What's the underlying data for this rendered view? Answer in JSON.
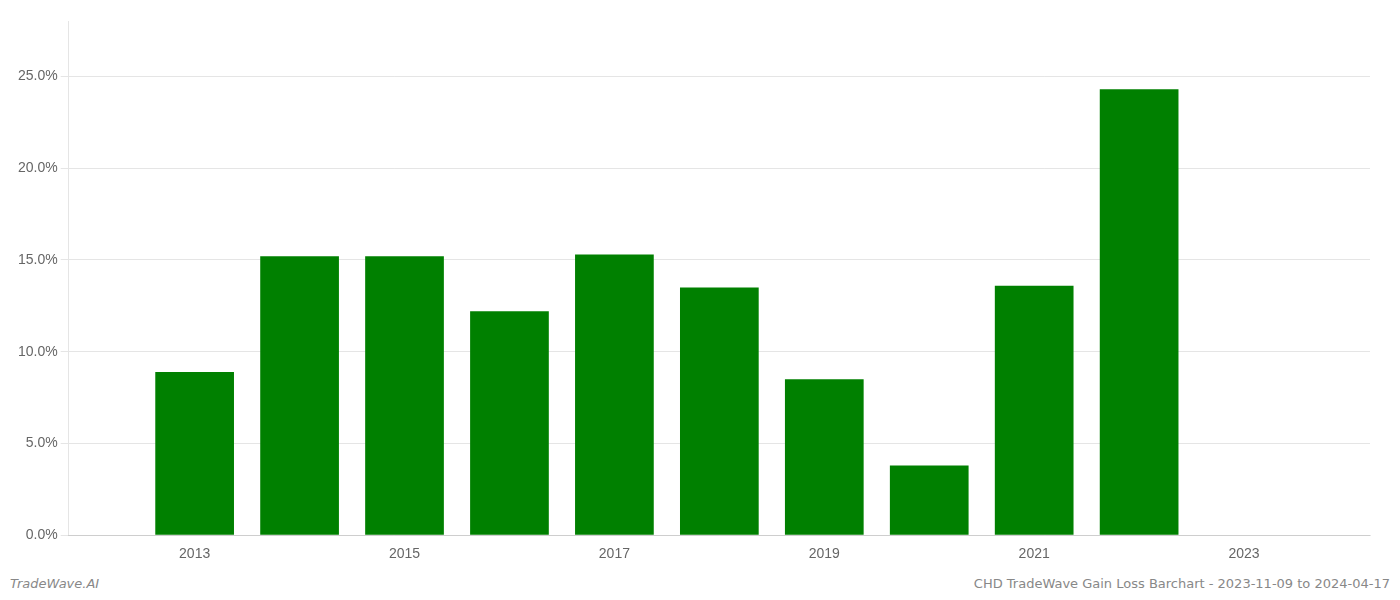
{
  "chart_data": {
    "type": "bar",
    "x": [
      2013,
      2014,
      2015,
      2016,
      2017,
      2018,
      2019,
      2020,
      2021,
      2022
    ],
    "values": [
      0.089,
      0.152,
      0.152,
      0.122,
      0.153,
      0.135,
      0.085,
      0.038,
      0.136,
      0.243
    ],
    "color": "#008000",
    "xlim": [
      2011.8,
      2024.2
    ],
    "xticks": [
      2013,
      2015,
      2017,
      2019,
      2021,
      2023
    ],
    "ylim": [
      0,
      0.28
    ],
    "yticks": [
      {
        "value": 0.0,
        "label": "0.0%"
      },
      {
        "value": 0.05,
        "label": "5.0%"
      },
      {
        "value": 0.1,
        "label": "10.0%"
      },
      {
        "value": 0.15,
        "label": "15.0%"
      },
      {
        "value": 0.2,
        "label": "20.0%"
      },
      {
        "value": 0.25,
        "label": "25.0%"
      }
    ],
    "grid": true,
    "annotations": [
      "TradeWave.AI",
      "CHD TradeWave Gain Loss Barchart - 2023-11-09 to 2024-04-17"
    ]
  }
}
